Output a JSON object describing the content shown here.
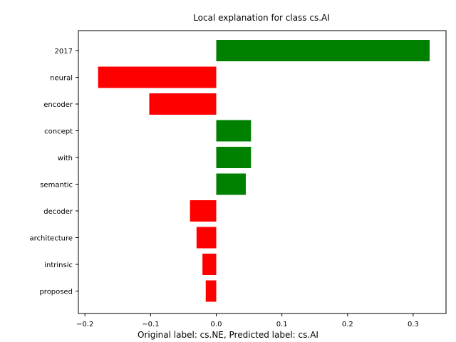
{
  "chart_data": {
    "type": "bar",
    "orientation": "horizontal",
    "title": "Local explanation for class cs.AI",
    "caption": "Original label: cs.NE, Predicted label: cs.AI",
    "xlabel": "",
    "ylabel": "",
    "categories": [
      "2017",
      "neural",
      "encoder",
      "concept",
      "with",
      "semantic",
      "decoder",
      "architecture",
      "intrinsic",
      "proposed"
    ],
    "values": [
      0.325,
      -0.18,
      -0.102,
      0.053,
      0.053,
      0.045,
      -0.04,
      -0.03,
      -0.021,
      -0.016
    ],
    "xlim": [
      -0.21,
      0.35
    ],
    "xticks": [
      -0.2,
      -0.1,
      0.0,
      0.1,
      0.2,
      0.3
    ],
    "xtick_labels": [
      "−0.2",
      "−0.1",
      "0.0",
      "0.1",
      "0.2",
      "0.3"
    ],
    "positive_color": "#008000",
    "negative_color": "#ff0000",
    "grid": false,
    "legend": "none"
  }
}
